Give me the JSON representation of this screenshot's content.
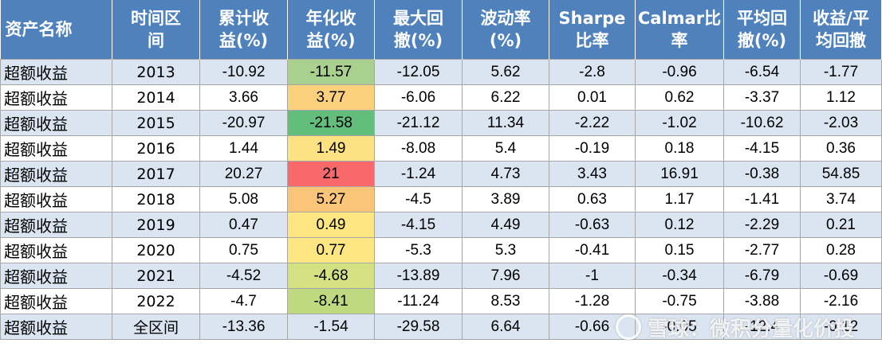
{
  "headers": [
    "资产名称",
    "时间区间",
    "累计收益(%)",
    "年化收益(%)",
    "最大回撤(%)",
    "波动率(%)",
    "Sharpe比率",
    "Calmar比率",
    "平均回撤(%)",
    "收益/平均回撤"
  ],
  "header_lines": [
    [
      "资产名称"
    ],
    [
      "时间区",
      "间"
    ],
    [
      "累计收",
      "益(%)"
    ],
    [
      "年化收",
      "益(%)"
    ],
    [
      "最大回",
      "撤(%)"
    ],
    [
      "波动率",
      "(%)"
    ],
    [
      "Sharpe",
      "比率"
    ],
    [
      "Calmar比",
      "率"
    ],
    [
      "平均回",
      "撤(%)"
    ],
    [
      "收益/平",
      "均回撤"
    ]
  ],
  "rows": [
    {
      "name": "超额收益",
      "period": "2013",
      "cum": "-10.92",
      "ann": "-11.57",
      "mdd": "-12.05",
      "vol": "5.62",
      "sharpe": "-2.8",
      "calmar": "-0.96",
      "avg_dd": "-6.54",
      "ret_dd": "-1.77",
      "ann_color": "#a9d08e"
    },
    {
      "name": "超额收益",
      "period": "2014",
      "cum": "3.66",
      "ann": "3.77",
      "mdd": "-6.06",
      "vol": "6.22",
      "sharpe": "0.01",
      "calmar": "0.62",
      "avg_dd": "-3.37",
      "ret_dd": "1.12",
      "ann_color": "#fcd17d"
    },
    {
      "name": "超额收益",
      "period": "2015",
      "cum": "-20.97",
      "ann": "-21.58",
      "mdd": "-21.12",
      "vol": "11.34",
      "sharpe": "-2.22",
      "calmar": "-1.02",
      "avg_dd": "-10.62",
      "ret_dd": "-2.03",
      "ann_color": "#63be7b"
    },
    {
      "name": "超额收益",
      "period": "2016",
      "cum": "1.44",
      "ann": "1.49",
      "mdd": "-8.08",
      "vol": "5.4",
      "sharpe": "-0.19",
      "calmar": "0.18",
      "avg_dd": "-4.15",
      "ret_dd": "0.36",
      "ann_color": "#fde283"
    },
    {
      "name": "超额收益",
      "period": "2017",
      "cum": "20.27",
      "ann": "21",
      "mdd": "-1.24",
      "vol": "4.73",
      "sharpe": "3.43",
      "calmar": "16.91",
      "avg_dd": "-0.38",
      "ret_dd": "54.85",
      "ann_color": "#f8696b"
    },
    {
      "name": "超额收益",
      "period": "2018",
      "cum": "5.08",
      "ann": "5.27",
      "mdd": "-4.5",
      "vol": "3.89",
      "sharpe": "0.63",
      "calmar": "1.17",
      "avg_dd": "-1.41",
      "ret_dd": "3.74",
      "ann_color": "#fbc579"
    },
    {
      "name": "超额收益",
      "period": "2019",
      "cum": "0.47",
      "ann": "0.49",
      "mdd": "-4.15",
      "vol": "4.49",
      "sharpe": "-0.63",
      "calmar": "0.12",
      "avg_dd": "-2.29",
      "ret_dd": "0.21",
      "ann_color": "#fee783"
    },
    {
      "name": "超额收益",
      "period": "2020",
      "cum": "0.75",
      "ann": "0.77",
      "mdd": "-5.3",
      "vol": "5.3",
      "sharpe": "-0.41",
      "calmar": "0.15",
      "avg_dd": "-2.77",
      "ret_dd": "0.28",
      "ann_color": "#fee683"
    },
    {
      "name": "超额收益",
      "period": "2021",
      "cum": "-4.52",
      "ann": "-4.68",
      "mdd": "-13.89",
      "vol": "7.96",
      "sharpe": "-1",
      "calmar": "-0.34",
      "avg_dd": "-6.79",
      "ret_dd": "-0.69",
      "ann_color": "#d3e183"
    },
    {
      "name": "超额收益",
      "period": "2022",
      "cum": "-4.7",
      "ann": "-8.41",
      "mdd": "-11.24",
      "vol": "8.53",
      "sharpe": "-1.28",
      "calmar": "-0.75",
      "avg_dd": "-3.88",
      "ret_dd": "-2.16",
      "ann_color": "#bfd981"
    },
    {
      "name": "超额收益",
      "period": "全区间",
      "cum": "-13.36",
      "ann": "-1.54",
      "mdd": "-29.58",
      "vol": "6.64",
      "sharpe": "-0.66",
      "calmar": "-0.05",
      "avg_dd": "-12.4",
      "ret_dd": "-0.12",
      "ann_color": ""
    }
  ],
  "watermark": "雪球：微积分量化价投"
}
